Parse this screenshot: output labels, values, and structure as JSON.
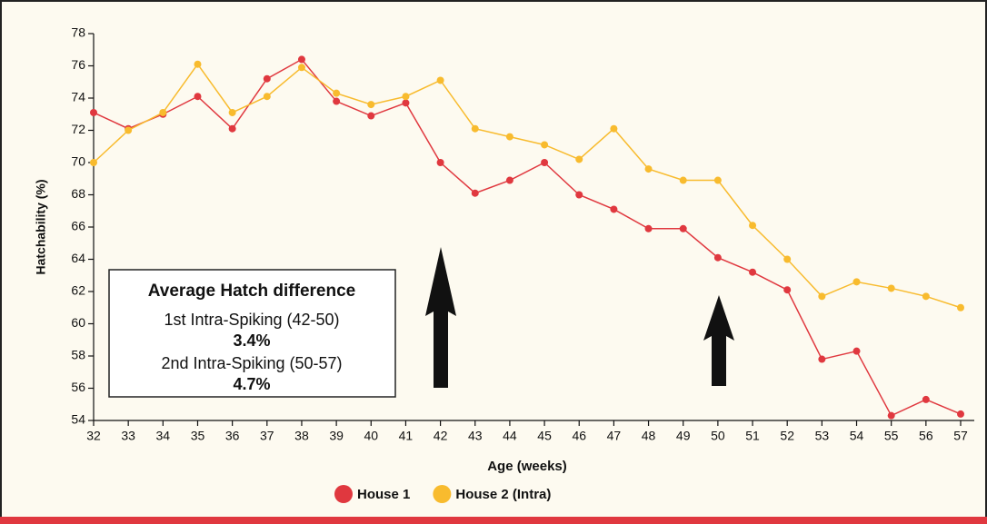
{
  "chart_data": {
    "type": "line",
    "x_label": "Age (weeks)",
    "y_label": "Hatchability (%)",
    "x": [
      32,
      33,
      34,
      35,
      36,
      37,
      38,
      39,
      40,
      41,
      42,
      43,
      44,
      45,
      46,
      47,
      48,
      49,
      50,
      51,
      52,
      53,
      54,
      55,
      56,
      57
    ],
    "xlim": [
      32,
      57
    ],
    "xticks": [
      32,
      33,
      34,
      35,
      36,
      37,
      38,
      39,
      40,
      41,
      42,
      43,
      44,
      45,
      46,
      47,
      48,
      49,
      50,
      51,
      52,
      53,
      54,
      55,
      56,
      57
    ],
    "ylim": [
      54,
      78
    ],
    "yticks": [
      54,
      56,
      58,
      60,
      62,
      64,
      66,
      68,
      70,
      72,
      74,
      76,
      78
    ],
    "series": [
      {
        "name": "House 1",
        "color": "#e0383f",
        "values": [
          73.1,
          72.1,
          73.0,
          74.1,
          72.1,
          75.2,
          76.4,
          73.8,
          72.9,
          73.7,
          70.0,
          68.1,
          68.9,
          70.0,
          68.0,
          67.1,
          65.9,
          65.9,
          64.1,
          63.2,
          62.1,
          57.8,
          58.3,
          54.3,
          55.3,
          54.4
        ]
      },
      {
        "name": "House 2 (Intra)",
        "color": "#f8bb2e",
        "values": [
          70.0,
          72.0,
          73.1,
          76.1,
          73.1,
          74.1,
          75.9,
          74.3,
          73.6,
          74.1,
          75.1,
          72.1,
          71.6,
          71.1,
          70.2,
          72.1,
          69.6,
          68.9,
          68.9,
          66.1,
          64.0,
          61.7,
          62.6,
          62.2,
          61.7,
          61.0
        ]
      }
    ],
    "annotation": {
      "title": "Average Hatch difference",
      "lines": [
        "1st Intra-Spiking (42-50)",
        "3.4%",
        "2nd Intra-Spiking (50-57)",
        "4.7%"
      ]
    }
  }
}
